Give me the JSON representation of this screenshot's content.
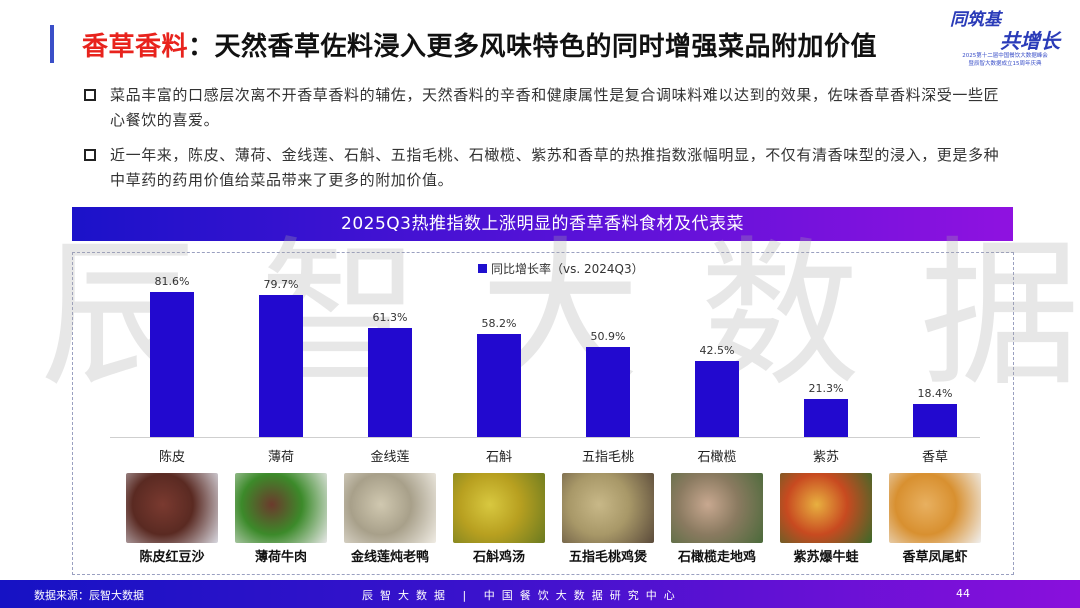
{
  "header": {
    "title_highlight": "香草香料",
    "title_rest": "：天然香草佐料浸入更多风味特色的同时增强菜品附加价值",
    "accent_bar_color": "#3a4fc8",
    "highlight_color": "#e8231d"
  },
  "logo": {
    "line1": "同筑基",
    "line2": "共增长",
    "line3": "2025第十二届中国餐饮大数据峰会",
    "line4": "暨辰智大数据成立15周年庆典"
  },
  "bullets": [
    {
      "text": "菜品丰富的口感层次离不开香草香料的辅佐，天然香料的辛香和健康属性是复合调味料难以达到的效果，佐味香草香料深受一些匠心餐饮的喜爱。"
    },
    {
      "text": "近一年来，陈皮、薄荷、金线莲、石斛、五指毛桃、石橄榄、紫苏和香草的热推指数涨幅明显，不仅有清香味型的浸入，更是多种中草药的药用价值给菜品带来了更多的附加价值。"
    }
  ],
  "watermark": [
    "辰",
    "智",
    "大",
    "数",
    "据"
  ],
  "chart_data": {
    "type": "bar",
    "title": "2025Q3热推指数上涨明显的香草香料食材及代表菜",
    "legend": [
      "同比增长率（vs. 2024Q3）"
    ],
    "legend_position": "top",
    "categories": [
      "陈皮",
      "薄荷",
      "金线莲",
      "石斛",
      "五指毛桃",
      "石橄榄",
      "紫苏",
      "香草"
    ],
    "series": [
      {
        "name": "同比增长率（vs. 2024Q3）",
        "values": [
          81.6,
          79.7,
          61.3,
          58.2,
          50.9,
          42.5,
          21.3,
          18.4
        ],
        "color": "#2209cf"
      }
    ],
    "value_labels": [
      "81.6%",
      "79.7%",
      "61.3%",
      "58.2%",
      "50.9%",
      "42.5%",
      "21.3%",
      "18.4%"
    ],
    "unit": "%",
    "xlabel": "",
    "ylabel": "",
    "ylim": [
      0,
      88
    ],
    "grid": false
  },
  "dishes": [
    {
      "name": "陈皮红豆沙",
      "colors": [
        "#5a2a22",
        "#7a3a30",
        "#d8d8e0"
      ]
    },
    {
      "name": "薄荷牛肉",
      "colors": [
        "#3c8a2a",
        "#6b3a2c",
        "#e8e8e8"
      ]
    },
    {
      "name": "金线莲炖老鸭",
      "colors": [
        "#a8a08a",
        "#d0c8b0",
        "#f0ece4"
      ]
    },
    {
      "name": "石斛鸡汤",
      "colors": [
        "#b8a020",
        "#d8c840",
        "#6a7a20"
      ]
    },
    {
      "name": "五指毛桃鸡煲",
      "colors": [
        "#a89868",
        "#c8b888",
        "#5a4a3a"
      ]
    },
    {
      "name": "石橄榄走地鸡",
      "colors": [
        "#8a7a60",
        "#c8a890",
        "#4a6a3a"
      ]
    },
    {
      "name": "紫苏爆牛蛙",
      "colors": [
        "#c84a20",
        "#e8b040",
        "#3a6a2a"
      ]
    },
    {
      "name": "香草凤尾虾",
      "colors": [
        "#d89030",
        "#e8b060",
        "#f0f0f0"
      ]
    }
  ],
  "footer": {
    "source": "数据来源：辰智大数据",
    "center": "辰智大数据 | 中国餐饮大数据研究中心",
    "page_number": "44"
  }
}
